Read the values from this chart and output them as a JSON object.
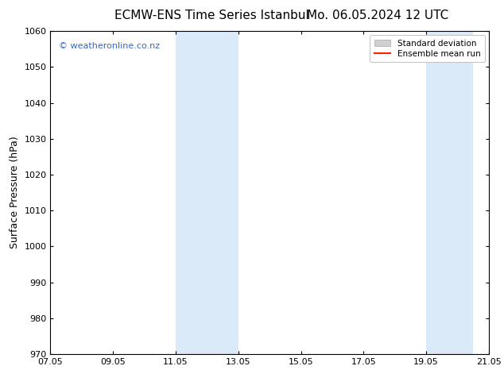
{
  "title_left": "ECMW-ENS Time Series Istanbul",
  "title_right": "Mo. 06.05.2024 12 UTC",
  "ylabel": "Surface Pressure (hPa)",
  "ylim": [
    970,
    1060
  ],
  "yticks": [
    970,
    980,
    990,
    1000,
    1010,
    1020,
    1030,
    1040,
    1050,
    1060
  ],
  "xtick_labels": [
    "07.05",
    "09.05",
    "11.05",
    "13.05",
    "15.05",
    "17.05",
    "19.05",
    "21.05"
  ],
  "xtick_positions": [
    0,
    2,
    4,
    6,
    8,
    10,
    12,
    14
  ],
  "xlim": [
    0,
    14
  ],
  "shaded_bands": [
    {
      "xstart": 4,
      "xend": 6
    },
    {
      "xstart": 12,
      "xend": 13.5
    }
  ],
  "shade_color": "#daeaf8",
  "background_color": "#ffffff",
  "watermark_text": "© weatheronline.co.nz",
  "watermark_color": "#3366cc",
  "legend_std_color": "#d0d0d0",
  "legend_mean_color": "#ff2200",
  "title_fontsize": 11,
  "ylabel_fontsize": 9,
  "tick_fontsize": 8,
  "watermark_fontsize": 8
}
